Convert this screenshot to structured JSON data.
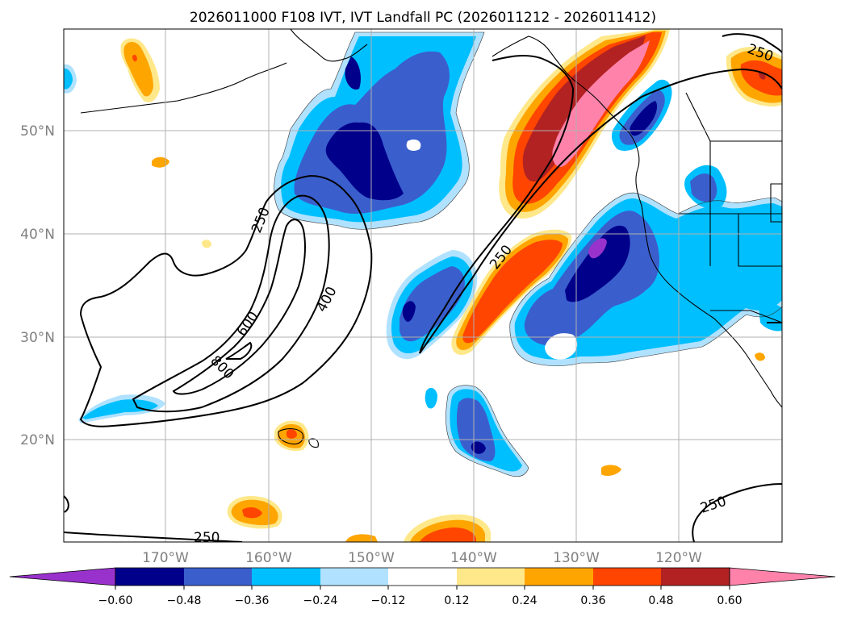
{
  "title": "2026011000 F108 IVT, IVT Landfall PC (2026011212 - 2026011412)",
  "map": {
    "lat_labels": [
      "50°N",
      "40°N",
      "30°N",
      "20°N"
    ],
    "lon_labels": [
      "170°W",
      "160°W",
      "150°W",
      "140°W",
      "130°W",
      "120°W"
    ],
    "ivt_contour_labels": [
      "250",
      "250",
      "400",
      "600",
      "800",
      "250",
      "250",
      "250"
    ]
  },
  "colorbar": {
    "ticks": [
      "−0.60",
      "−0.48",
      "−0.36",
      "−0.24",
      "−0.12",
      "0.12",
      "0.24",
      "0.36",
      "0.48",
      "0.60"
    ],
    "colors": [
      "#9932CC",
      "#00008B",
      "#3A5FCD",
      "#00BFFF",
      "#B0E2FF",
      "#FFFFFF",
      "#FFE88A",
      "#FFA500",
      "#FF4500",
      "#B22222",
      "#FF82AB"
    ]
  },
  "palette": {
    "purple": "#9932CC",
    "navy": "#00008B",
    "royal": "#3A5FCD",
    "cyan": "#00BFFF",
    "lightblue": "#B0E2FF",
    "yellow": "#FFE88A",
    "orange": "#FFA500",
    "redorange": "#FF4500",
    "firebrick": "#B22222",
    "pink": "#FF82AB"
  }
}
